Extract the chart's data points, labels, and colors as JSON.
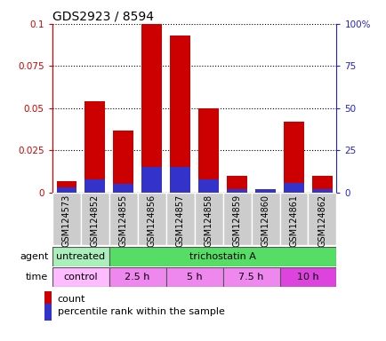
{
  "title": "GDS2923 / 8594",
  "samples": [
    "GSM124573",
    "GSM124852",
    "GSM124855",
    "GSM124856",
    "GSM124857",
    "GSM124858",
    "GSM124859",
    "GSM124860",
    "GSM124861",
    "GSM124862"
  ],
  "count_values": [
    0.007,
    0.054,
    0.037,
    0.1,
    0.093,
    0.05,
    0.01,
    0.002,
    0.042,
    0.01
  ],
  "percentile_values": [
    0.003,
    0.008,
    0.005,
    0.015,
    0.015,
    0.008,
    0.002,
    0.002,
    0.006,
    0.002
  ],
  "ylim_left": [
    0,
    0.1
  ],
  "ylim_right": [
    0,
    100
  ],
  "yticks_left": [
    0,
    0.025,
    0.05,
    0.075,
    0.1
  ],
  "ytick_labels_left": [
    "0",
    "0.025",
    "0.05",
    "0.075",
    "0.1"
  ],
  "yticks_right": [
    0,
    25,
    50,
    75,
    100
  ],
  "ytick_labels_right": [
    "0",
    "25",
    "50",
    "75",
    "100%"
  ],
  "bar_width": 0.7,
  "count_color": "#cc0000",
  "percentile_color": "#3333cc",
  "agent_row": {
    "label": "agent",
    "groups": [
      {
        "text": "untreated",
        "start": 0,
        "end": 2,
        "color": "#aaeebb"
      },
      {
        "text": "trichostatin A",
        "start": 2,
        "end": 10,
        "color": "#55dd66"
      }
    ]
  },
  "time_row": {
    "label": "time",
    "groups": [
      {
        "text": "control",
        "start": 0,
        "end": 2,
        "color": "#ffbbff"
      },
      {
        "text": "2.5 h",
        "start": 2,
        "end": 4,
        "color": "#ee88ee"
      },
      {
        "text": "5 h",
        "start": 4,
        "end": 6,
        "color": "#ee88ee"
      },
      {
        "text": "7.5 h",
        "start": 6,
        "end": 8,
        "color": "#ee88ee"
      },
      {
        "text": "10 h",
        "start": 8,
        "end": 10,
        "color": "#dd44dd"
      }
    ]
  },
  "legend_items": [
    {
      "label": "count",
      "color": "#cc0000"
    },
    {
      "label": "percentile rank within the sample",
      "color": "#3333cc"
    }
  ],
  "bg_color": "#ffffff",
  "axis_color_left": "#cc0000",
  "axis_color_right": "#2222cc",
  "label_box_color": "#cccccc",
  "label_box_border": "#888888"
}
